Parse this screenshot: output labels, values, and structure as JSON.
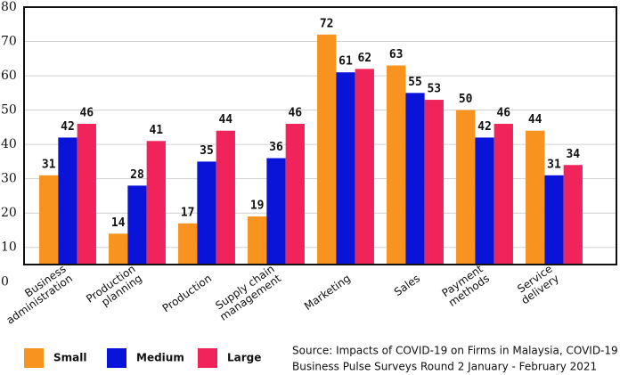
{
  "chart_data": {
    "type": "bar",
    "categories": [
      [
        "Business",
        "administration"
      ],
      [
        "Production",
        "planning"
      ],
      [
        "Production"
      ],
      [
        "Supply chain",
        "management"
      ],
      [
        "Marketing"
      ],
      [
        "Sales"
      ],
      [
        "Payment",
        "methods"
      ],
      [
        "Service",
        "delivery"
      ]
    ],
    "series": [
      {
        "name": "Small",
        "color": "#f7931e",
        "values": [
          31,
          14,
          17,
          19,
          72,
          63,
          50,
          44
        ]
      },
      {
        "name": "Medium",
        "color": "#0a14d8",
        "values": [
          42,
          28,
          35,
          36,
          61,
          55,
          42,
          31
        ]
      },
      {
        "name": "Large",
        "color": "#f0245a",
        "values": [
          46,
          41,
          44,
          46,
          62,
          53,
          46,
          34
        ]
      }
    ],
    "ylim": [
      5,
      80
    ],
    "yticks": [
      0,
      10,
      20,
      30,
      40,
      50,
      60,
      70,
      80
    ],
    "grid": true,
    "legend": "bottom-left",
    "source": [
      "Source: Impacts of COVID-19 on Firms in Malaysia, COVID-19",
      "Business Pulse Surveys Round 2 January - February 2021"
    ]
  }
}
